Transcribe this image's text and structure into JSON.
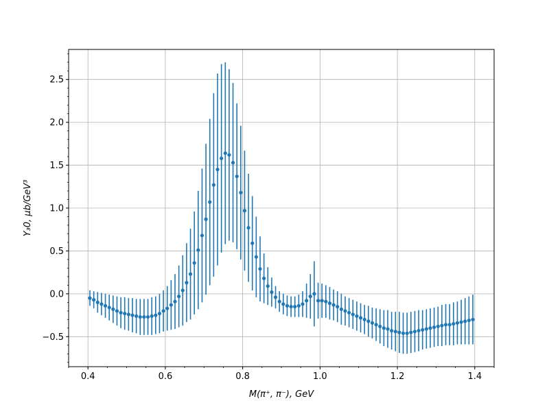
{
  "chart_data": {
    "type": "scatter",
    "xlabel": "M(π⁺, π⁻), GeV",
    "ylabel": "Y₃0, μb/GeV³",
    "xlim": [
      0.35,
      1.45
    ],
    "ylim": [
      -0.85,
      2.85
    ],
    "grid": true,
    "color": "#1f77b4",
    "x_ticks": [
      0.4,
      0.6,
      0.8,
      1.0,
      1.2,
      1.4
    ],
    "y_ticks": [
      -0.5,
      0.0,
      0.5,
      1.0,
      1.5,
      2.0,
      2.5
    ],
    "series": [
      {
        "x": [
          0.405,
          0.415,
          0.425,
          0.435,
          0.445,
          0.455,
          0.465,
          0.475,
          0.485,
          0.495,
          0.505,
          0.515,
          0.525,
          0.535,
          0.545,
          0.555,
          0.565,
          0.575,
          0.585,
          0.595,
          0.605,
          0.615,
          0.625,
          0.635,
          0.645,
          0.655,
          0.665,
          0.675,
          0.685,
          0.695,
          0.705,
          0.715,
          0.725,
          0.735,
          0.745,
          0.755,
          0.765,
          0.775,
          0.785,
          0.795,
          0.805,
          0.815,
          0.825,
          0.835,
          0.845,
          0.855,
          0.865,
          0.875,
          0.885,
          0.895,
          0.905,
          0.915,
          0.925,
          0.935,
          0.945,
          0.955,
          0.965,
          0.975,
          0.985,
          0.995,
          1.005,
          1.015,
          1.025,
          1.035,
          1.045,
          1.055,
          1.065,
          1.075,
          1.085,
          1.095,
          1.105,
          1.115,
          1.125,
          1.135,
          1.145,
          1.155,
          1.165,
          1.175,
          1.185,
          1.195,
          1.205,
          1.215,
          1.225,
          1.235,
          1.245,
          1.255,
          1.265,
          1.275,
          1.285,
          1.295,
          1.305,
          1.315,
          1.325,
          1.335,
          1.345,
          1.355,
          1.365,
          1.375,
          1.385,
          1.395
        ],
        "y": [
          -0.05,
          -0.07,
          -0.1,
          -0.12,
          -0.14,
          -0.16,
          -0.18,
          -0.2,
          -0.22,
          -0.23,
          -0.24,
          -0.25,
          -0.26,
          -0.27,
          -0.27,
          -0.27,
          -0.26,
          -0.25,
          -0.23,
          -0.2,
          -0.17,
          -0.13,
          -0.09,
          -0.03,
          0.04,
          0.13,
          0.23,
          0.36,
          0.51,
          0.68,
          0.87,
          1.07,
          1.27,
          1.45,
          1.58,
          1.64,
          1.62,
          1.53,
          1.37,
          1.18,
          0.97,
          0.77,
          0.59,
          0.43,
          0.29,
          0.18,
          0.09,
          0.02,
          -0.04,
          -0.09,
          -0.12,
          -0.14,
          -0.15,
          -0.15,
          -0.14,
          -0.12,
          -0.08,
          -0.03,
          0.0,
          -0.08,
          -0.08,
          -0.09,
          -0.11,
          -0.13,
          -0.15,
          -0.18,
          -0.2,
          -0.22,
          -0.24,
          -0.26,
          -0.28,
          -0.3,
          -0.32,
          -0.34,
          -0.36,
          -0.38,
          -0.4,
          -0.41,
          -0.43,
          -0.44,
          -0.45,
          -0.46,
          -0.46,
          -0.45,
          -0.44,
          -0.43,
          -0.42,
          -0.41,
          -0.4,
          -0.39,
          -0.38,
          -0.37,
          -0.36,
          -0.36,
          -0.35,
          -0.34,
          -0.33,
          -0.32,
          -0.31,
          -0.3
        ],
        "yerr": [
          0.09,
          0.1,
          0.12,
          0.13,
          0.14,
          0.15,
          0.16,
          0.17,
          0.18,
          0.19,
          0.19,
          0.2,
          0.2,
          0.21,
          0.21,
          0.21,
          0.22,
          0.22,
          0.23,
          0.24,
          0.26,
          0.29,
          0.32,
          0.36,
          0.41,
          0.46,
          0.53,
          0.6,
          0.69,
          0.78,
          0.88,
          0.97,
          1.07,
          1.12,
          1.1,
          1.06,
          1.0,
          0.93,
          0.85,
          0.78,
          0.7,
          0.63,
          0.55,
          0.47,
          0.38,
          0.29,
          0.22,
          0.17,
          0.13,
          0.12,
          0.12,
          0.12,
          0.12,
          0.12,
          0.13,
          0.15,
          0.2,
          0.26,
          0.38,
          0.21,
          0.2,
          0.19,
          0.19,
          0.18,
          0.18,
          0.18,
          0.17,
          0.17,
          0.17,
          0.17,
          0.17,
          0.17,
          0.18,
          0.18,
          0.19,
          0.2,
          0.21,
          0.22,
          0.22,
          0.23,
          0.24,
          0.24,
          0.24,
          0.24,
          0.24,
          0.24,
          0.23,
          0.23,
          0.23,
          0.23,
          0.23,
          0.24,
          0.24,
          0.24,
          0.25,
          0.25,
          0.26,
          0.27,
          0.28,
          0.29
        ]
      }
    ]
  }
}
